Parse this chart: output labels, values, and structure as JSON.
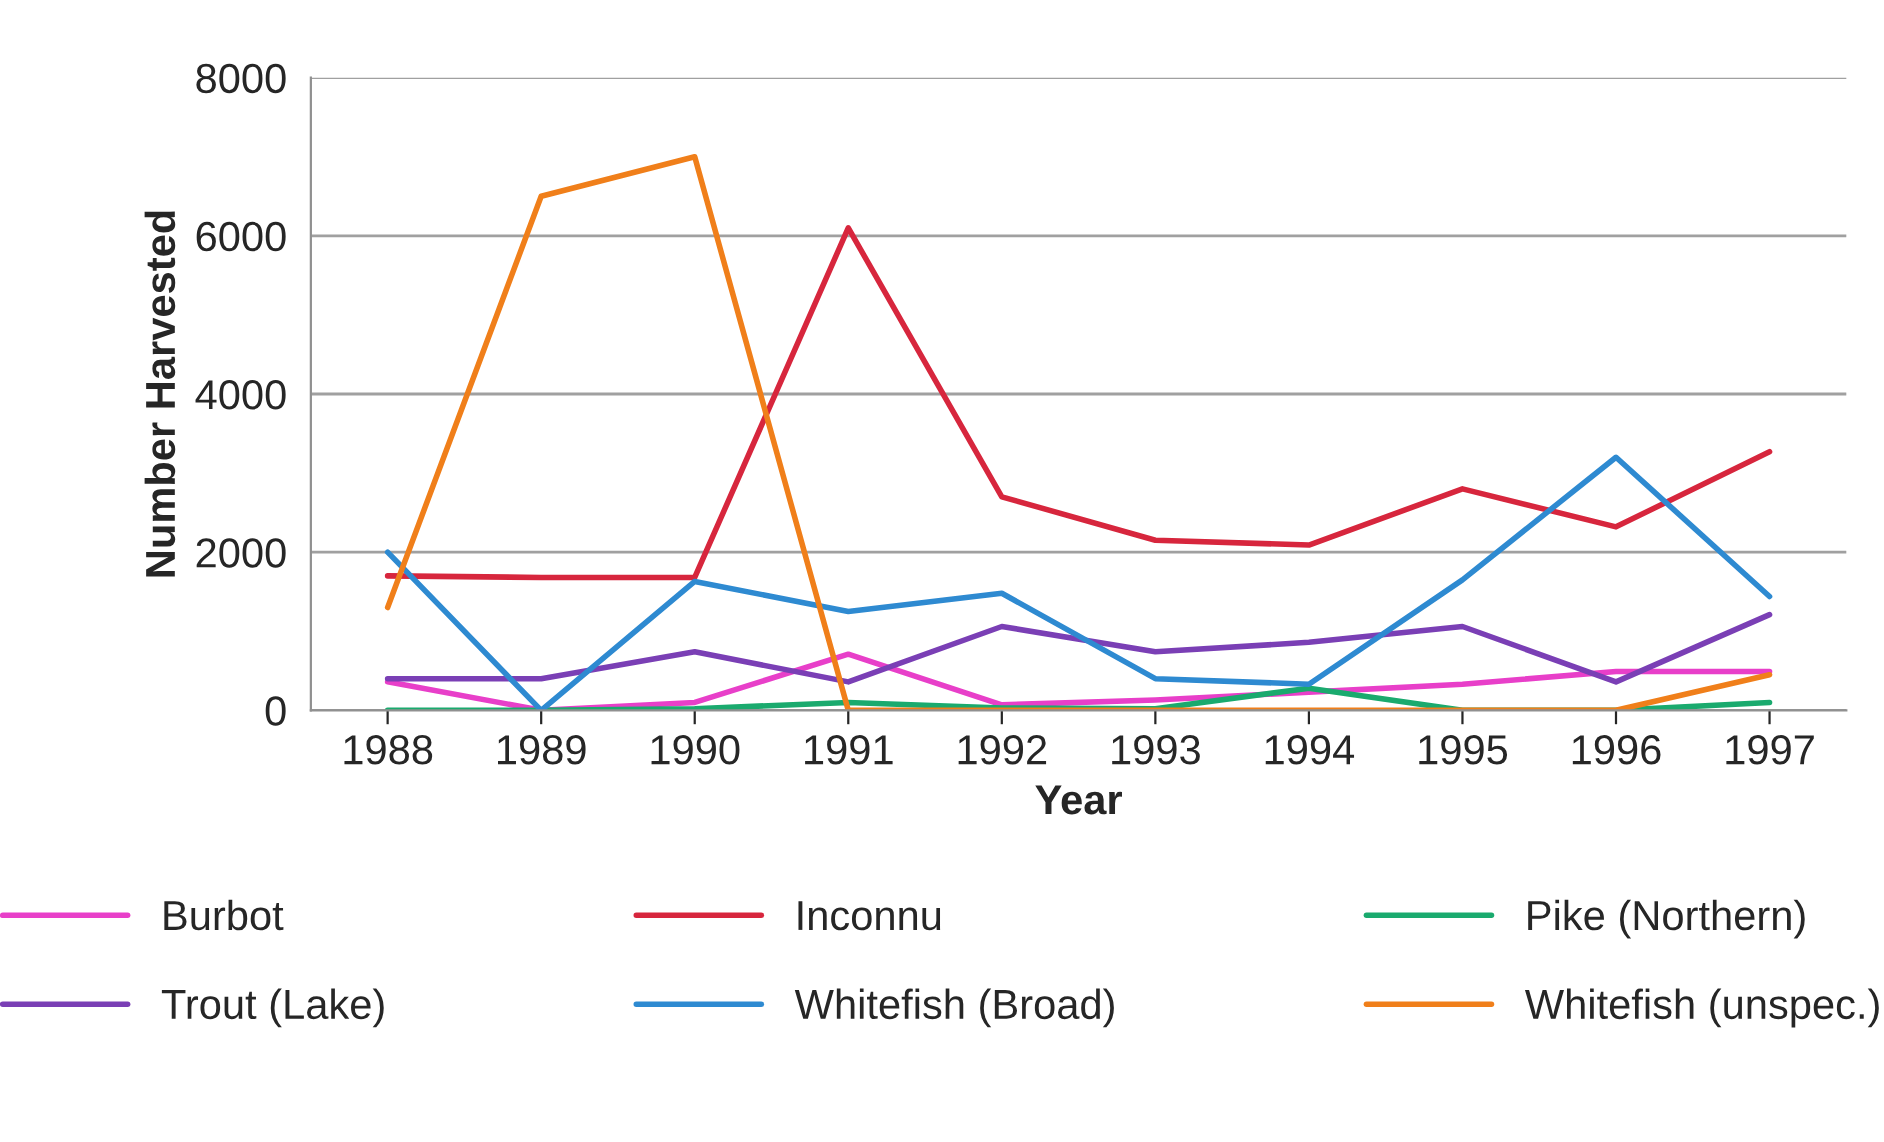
{
  "chart_data": {
    "type": "line",
    "xlabel": "Year",
    "ylabel": "Number Harvested",
    "categories": [
      "1988",
      "1989",
      "1990",
      "1991",
      "1992",
      "1993",
      "1994",
      "1995",
      "1996",
      "1997"
    ],
    "series": [
      {
        "name": "Burbot",
        "color": "#e83fc9",
        "values": [
          360,
          0,
          100,
          710,
          70,
          130,
          230,
          330,
          490,
          490
        ]
      },
      {
        "name": "Inconnu",
        "color": "#d7263d",
        "values": [
          1700,
          1680,
          1680,
          6100,
          2700,
          2150,
          2090,
          2800,
          2320,
          3270
        ]
      },
      {
        "name": "Pike (Northern)",
        "color": "#1aaa6e",
        "values": [
          0,
          0,
          20,
          100,
          30,
          20,
          280,
          0,
          0,
          100
        ]
      },
      {
        "name": "Trout (Lake)",
        "color": "#7a3fb5",
        "values": [
          400,
          400,
          740,
          360,
          1060,
          740,
          860,
          1060,
          360,
          1210
        ]
      },
      {
        "name": "Whitefish (Broad)",
        "color": "#2e8ad1",
        "values": [
          2000,
          0,
          1630,
          1250,
          1480,
          400,
          330,
          1650,
          3200,
          1440
        ]
      },
      {
        "name": "Whitefish (unspec.)",
        "color": "#f07f1a",
        "values": [
          1300,
          6500,
          7000,
          0,
          0,
          0,
          0,
          0,
          0,
          450
        ]
      }
    ],
    "ylim": [
      0,
      8000
    ],
    "yticks": [
      0,
      2000,
      4000,
      6000,
      8000
    ],
    "grid": "y",
    "legend": "bottom",
    "marker": "none",
    "line_style": "solid"
  }
}
